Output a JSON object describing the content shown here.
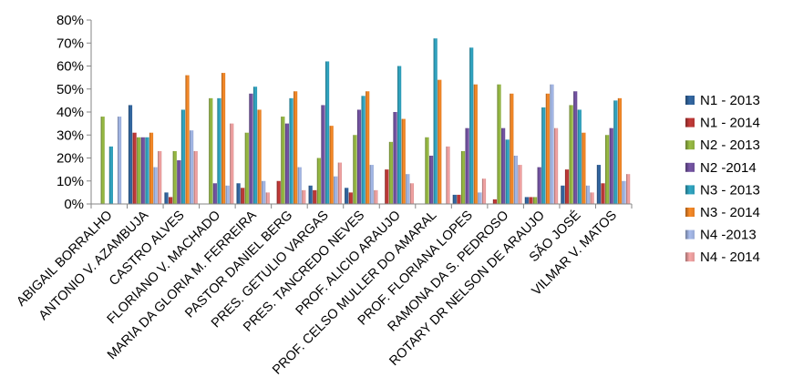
{
  "chart_data": {
    "type": "bar",
    "title": "",
    "xlabel": "",
    "ylabel": "",
    "ylim": [
      0,
      80
    ],
    "yticks": [
      "0%",
      "10%",
      "20%",
      "30%",
      "40%",
      "50%",
      "60%",
      "70%",
      "80%"
    ],
    "grid": false,
    "legend_position": "right",
    "categories": [
      "ABIGAIL BORRALHO",
      "ANTONIO V. AZAMBUJA",
      "CASTRO ALVES",
      "FLORIANO V. MACHADO",
      "MARIA DA GLORIA M. FERREIRA",
      "PASTOR DANIEL BERG",
      "PRES. GETULIO VARGAS",
      "PRES. TANCREDO NEVES",
      "PROF. ALICIO ARAUJO",
      "PROF. CELSO MULLER DO AMARAL",
      "PROF. FLORIANA LOPES",
      "RAMONA DA S. PEDROSO",
      "ROTARY DR NELSON DE ARAUJO",
      "SÃO JOSÉ",
      "VILMAR V. MATOS"
    ],
    "series": [
      {
        "name": "N1 - 2013",
        "color": "#2e5e93",
        "values": [
          0,
          43,
          5,
          0,
          9,
          0,
          8,
          7,
          0,
          0,
          4,
          0,
          3,
          8,
          17
        ]
      },
      {
        "name": "N1 - 2014",
        "color": "#b03533",
        "values": [
          0,
          31,
          3,
          0,
          7,
          10,
          6,
          5,
          15,
          0,
          4,
          2,
          3,
          15,
          9
        ]
      },
      {
        "name": "N2 - 2013",
        "color": "#8aaa3e",
        "values": [
          38,
          29,
          23,
          46,
          31,
          38,
          20,
          30,
          27,
          29,
          23,
          52,
          3,
          43,
          30
        ]
      },
      {
        "name": "N2 -2014",
        "color": "#6a4d95",
        "values": [
          0,
          29,
          19,
          9,
          48,
          35,
          43,
          41,
          40,
          21,
          33,
          33,
          16,
          49,
          33
        ]
      },
      {
        "name": "N3 - 2013",
        "color": "#2d97b1",
        "values": [
          25,
          29,
          41,
          46,
          51,
          46,
          62,
          47,
          60,
          72,
          68,
          28,
          42,
          41,
          45
        ]
      },
      {
        "name": "N3 - 2014",
        "color": "#e07d24",
        "values": [
          0,
          31,
          56,
          57,
          41,
          49,
          34,
          49,
          37,
          54,
          52,
          48,
          48,
          31,
          46
        ]
      },
      {
        "name": "N4 -2013",
        "color": "#97a9d4",
        "values": [
          38,
          16,
          32,
          8,
          10,
          16,
          12,
          17,
          13,
          0,
          5,
          21,
          52,
          8,
          10
        ]
      },
      {
        "name": "N4 - 2014",
        "color": "#dd9595",
        "values": [
          0,
          23,
          23,
          35,
          5,
          6,
          18,
          6,
          9,
          25,
          11,
          17,
          33,
          5,
          13
        ]
      }
    ]
  }
}
